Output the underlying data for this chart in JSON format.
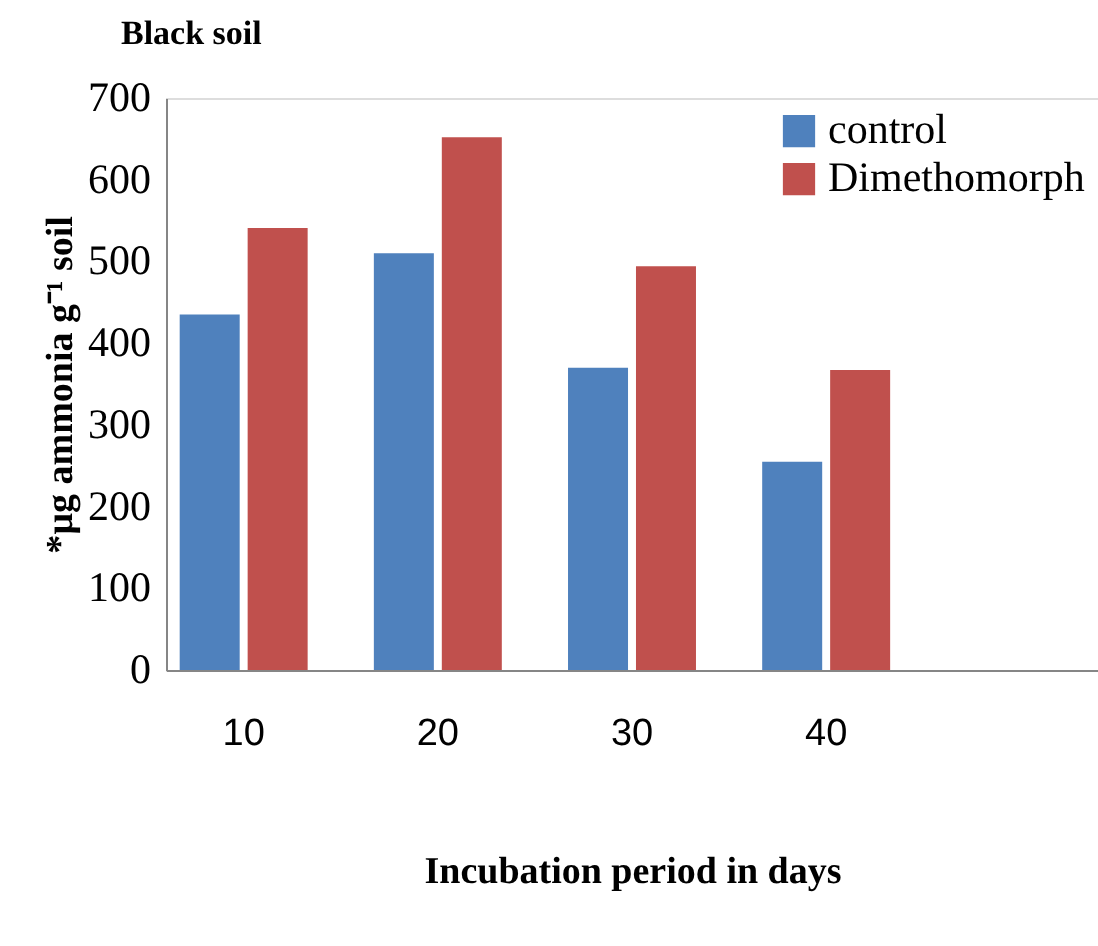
{
  "chart_data": {
    "type": "bar",
    "title": "Black soil",
    "xlabel": "Incubation period in days",
    "ylabel": "*µg ammonia  g⁻¹ soil",
    "categories": [
      "10",
      "20",
      "30",
      "40",
      null
    ],
    "series": [
      {
        "name": "control",
        "color": "#4f81bd",
        "values": [
          435,
          510,
          370,
          255,
          null
        ]
      },
      {
        "name": "Dimethomorph",
        "color": "#c0504d",
        "values": [
          541,
          652,
          494,
          367,
          null
        ]
      }
    ],
    "ylim": [
      0,
      700
    ],
    "yticks": [
      0,
      100,
      200,
      300,
      400,
      500,
      600,
      700
    ],
    "grid": false,
    "legend": "top right"
  }
}
